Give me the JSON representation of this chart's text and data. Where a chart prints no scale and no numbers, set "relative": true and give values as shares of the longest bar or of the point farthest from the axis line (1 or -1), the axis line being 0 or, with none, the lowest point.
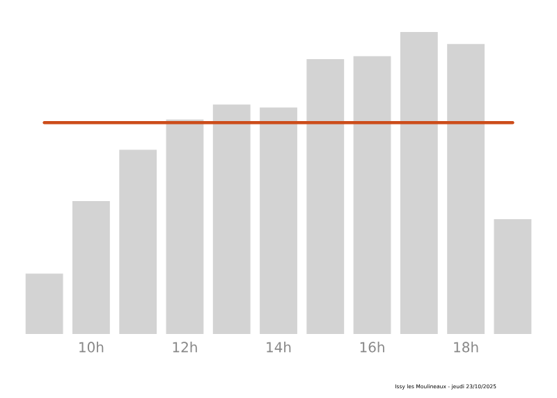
{
  "chart_data": {
    "type": "bar",
    "relative": true,
    "categories": [
      null,
      "10h",
      null,
      "12h",
      null,
      "14h",
      null,
      "16h",
      null,
      "18h",
      null
    ],
    "values": [
      0.2,
      0.44,
      0.61,
      0.71,
      0.76,
      0.75,
      0.91,
      0.92,
      1.0,
      0.96,
      0.38
    ],
    "color": "#d3d3d3",
    "ref_lines": [
      {
        "axis": "y",
        "value": 0.7,
        "color": "#cc4c1a"
      }
    ],
    "annotations": [
      "Issy les Moulineaux - jeudi 23/10/2025"
    ]
  }
}
